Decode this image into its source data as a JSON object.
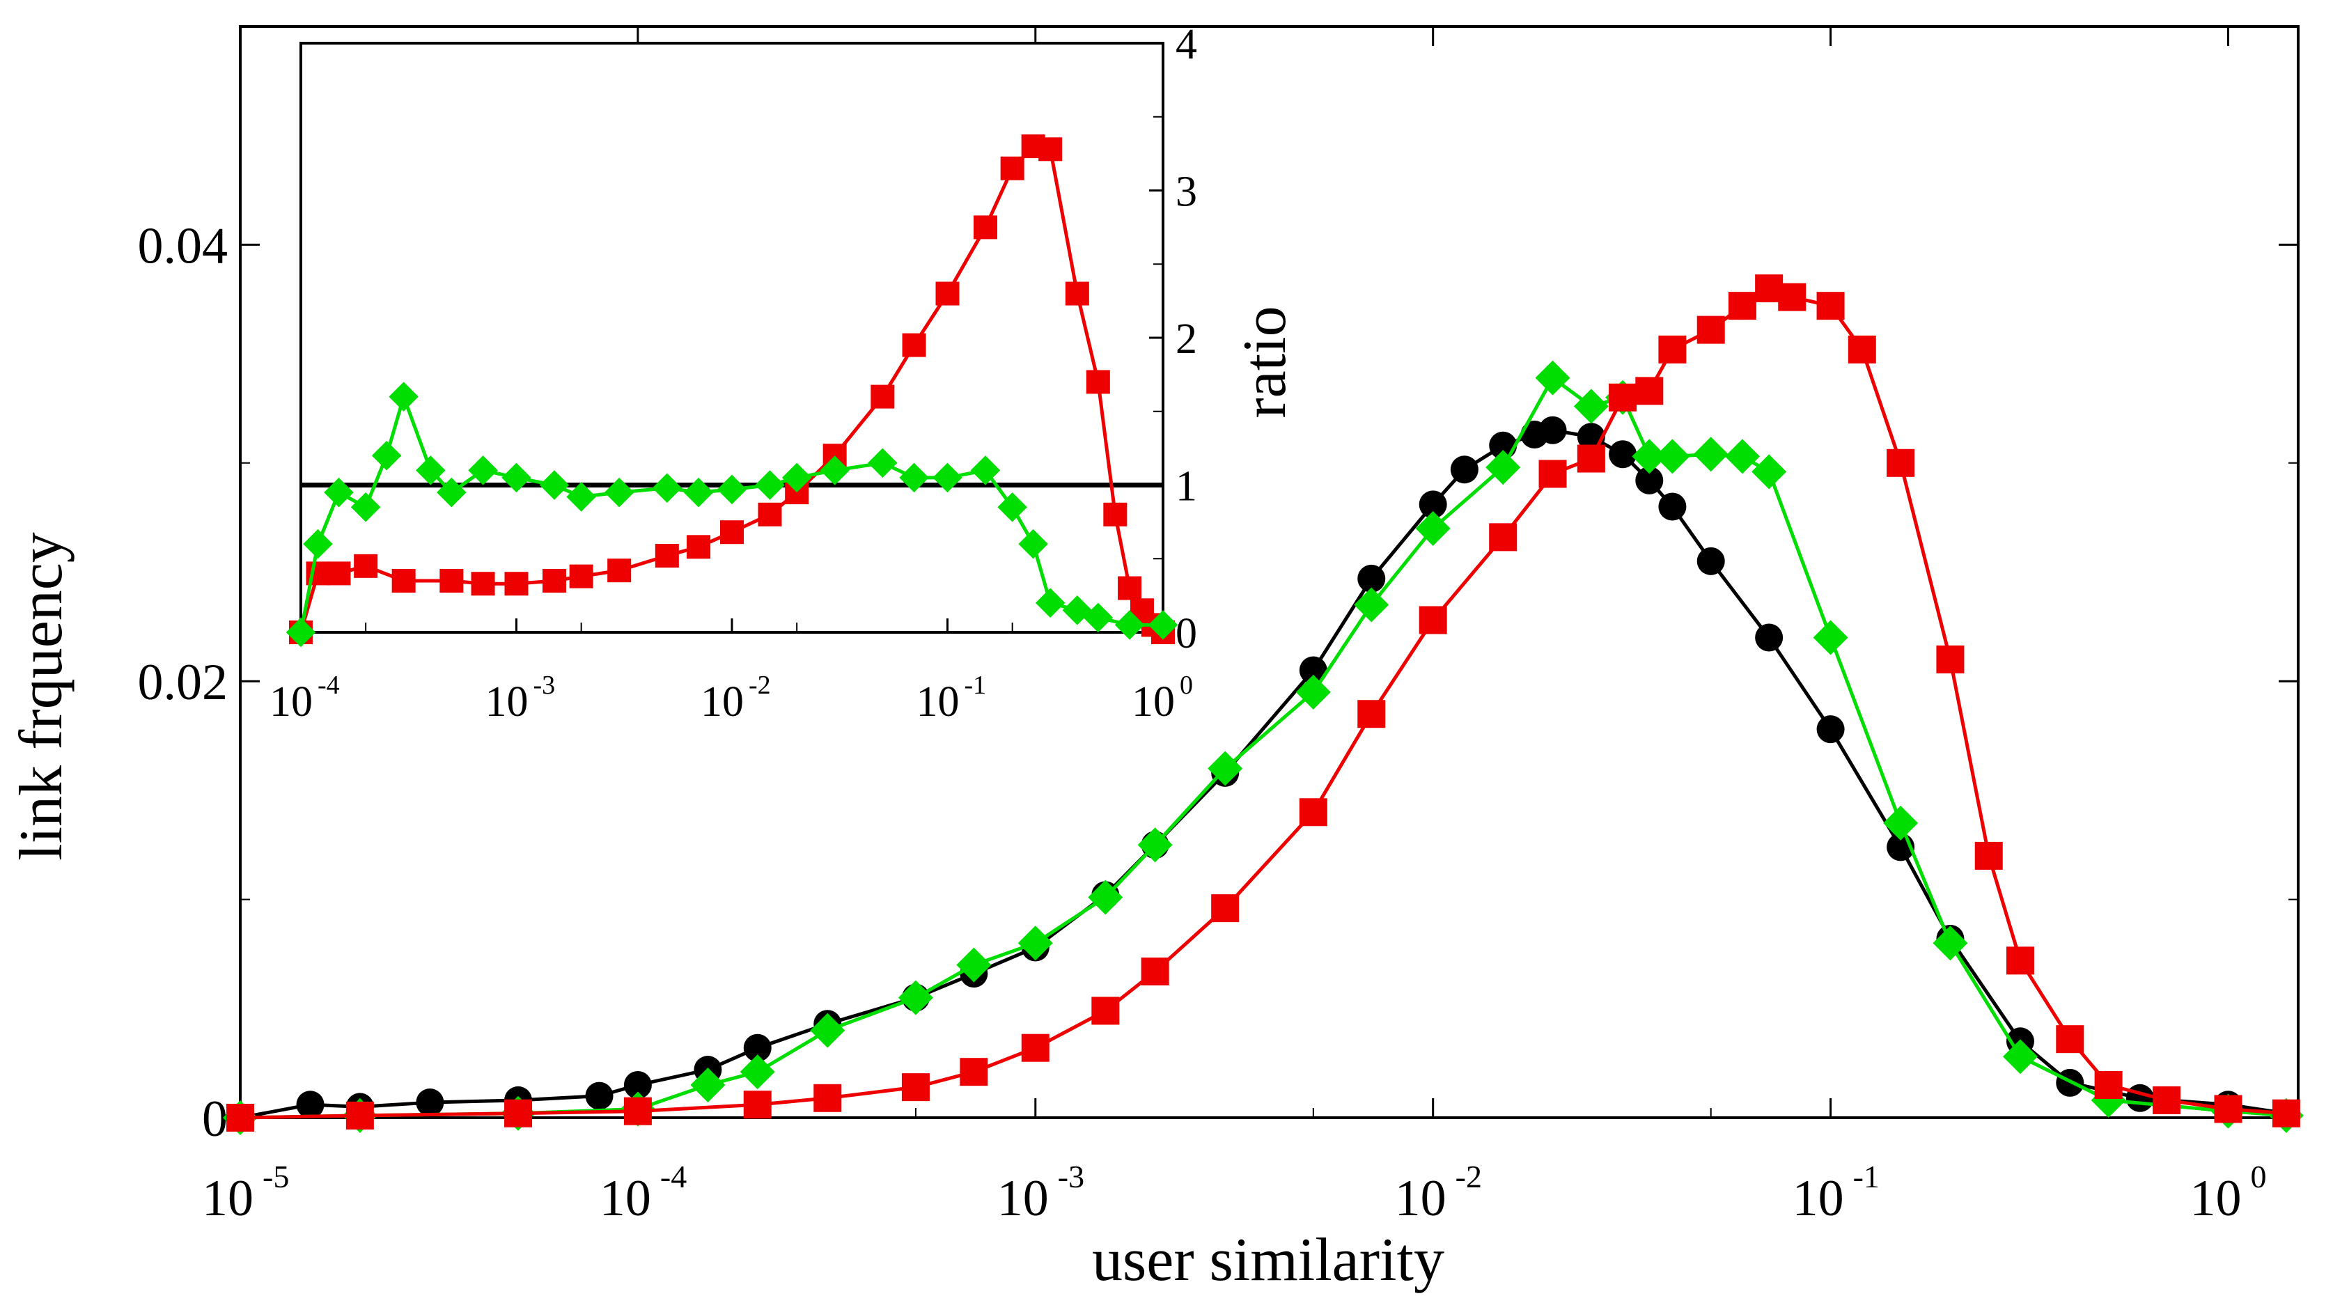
{
  "chart_data": [
    {
      "id": "main",
      "type": "line",
      "xscale": "log",
      "xlabel": "user similarity",
      "ylabel": "link frquency",
      "xlim": [
        1e-05,
        1.5
      ],
      "ylim": [
        0,
        0.05
      ],
      "xticks": [
        {
          "base": "10",
          "exp": "-5",
          "value": 1e-05
        },
        {
          "base": "10",
          "exp": "-4",
          "value": 0.0001
        },
        {
          "base": "10",
          "exp": "-3",
          "value": 0.001
        },
        {
          "base": "10",
          "exp": "-2",
          "value": 0.01
        },
        {
          "base": "10",
          "exp": "-1",
          "value": 0.1
        },
        {
          "base": "10",
          "exp": "0",
          "value": 1
        }
      ],
      "yticks": [
        {
          "label": "0",
          "value": 0
        },
        {
          "label": "0.02",
          "value": 0.02
        },
        {
          "label": "0.04",
          "value": 0.04
        }
      ],
      "series": [
        {
          "name": "black-circles",
          "color": "#000000",
          "marker": "circle",
          "x": [
            1e-05,
            1.5e-05,
            2e-05,
            3e-05,
            5e-05,
            8e-05,
            0.0001,
            0.00015,
            0.0002,
            0.0003,
            0.0005,
            0.0007,
            0.001,
            0.0015,
            0.002,
            0.003,
            0.005,
            0.007,
            0.01,
            0.012,
            0.015,
            0.018,
            0.02,
            0.025,
            0.03,
            0.035,
            0.04,
            0.05,
            0.07,
            0.1,
            0.15,
            0.2,
            0.3,
            0.4,
            0.6,
            1.0,
            1.4
          ],
          "y": [
            0.0,
            0.0006,
            0.0005,
            0.0007,
            0.0008,
            0.001,
            0.0015,
            0.0022,
            0.0032,
            0.0043,
            0.0055,
            0.0066,
            0.0078,
            0.0102,
            0.0125,
            0.0158,
            0.0205,
            0.0247,
            0.0281,
            0.0297,
            0.0308,
            0.0313,
            0.0315,
            0.0312,
            0.0304,
            0.0292,
            0.028,
            0.0255,
            0.022,
            0.0178,
            0.0124,
            0.0082,
            0.0035,
            0.0016,
            0.0009,
            0.0006,
            0.0002
          ]
        },
        {
          "name": "green-diamonds",
          "color": "#00dd00",
          "marker": "diamond",
          "x": [
            1e-05,
            2e-05,
            5e-05,
            0.0001,
            0.00015,
            0.0002,
            0.0003,
            0.0005,
            0.0007,
            0.001,
            0.0015,
            0.002,
            0.003,
            0.005,
            0.007,
            0.01,
            0.015,
            0.02,
            0.025,
            0.03,
            0.035,
            0.04,
            0.05,
            0.06,
            0.07,
            0.1,
            0.15,
            0.2,
            0.3,
            0.5,
            1.0,
            1.4
          ],
          "y": [
            0.0,
            0.0001,
            0.0002,
            0.0004,
            0.0015,
            0.0021,
            0.004,
            0.0055,
            0.007,
            0.008,
            0.0101,
            0.0125,
            0.016,
            0.0195,
            0.0235,
            0.027,
            0.0298,
            0.0339,
            0.0326,
            0.033,
            0.0303,
            0.0303,
            0.0304,
            0.0303,
            0.0296,
            0.022,
            0.0135,
            0.008,
            0.0028,
            0.0008,
            0.0003,
            0.0001
          ]
        },
        {
          "name": "red-squares",
          "color": "#ee0000",
          "marker": "square",
          "x": [
            1e-05,
            2e-05,
            5e-05,
            0.0001,
            0.0002,
            0.0003,
            0.0005,
            0.0007,
            0.001,
            0.0015,
            0.002,
            0.003,
            0.005,
            0.007,
            0.01,
            0.015,
            0.02,
            0.025,
            0.03,
            0.035,
            0.04,
            0.05,
            0.06,
            0.07,
            0.08,
            0.1,
            0.12,
            0.15,
            0.2,
            0.25,
            0.3,
            0.4,
            0.5,
            0.7,
            1.0,
            1.4
          ],
          "y": [
            0.0,
            0.0001,
            0.0002,
            0.0003,
            0.0006,
            0.0009,
            0.0014,
            0.0021,
            0.0032,
            0.0049,
            0.0067,
            0.0096,
            0.014,
            0.0185,
            0.0228,
            0.0266,
            0.0295,
            0.0302,
            0.033,
            0.0333,
            0.0352,
            0.0361,
            0.0372,
            0.038,
            0.0376,
            0.0372,
            0.0352,
            0.03,
            0.021,
            0.012,
            0.0072,
            0.0036,
            0.0015,
            0.0008,
            0.0004,
            0.0002
          ]
        }
      ]
    },
    {
      "id": "inset",
      "type": "line",
      "xscale": "log",
      "ylabel": "ratio",
      "xlim": [
        0.0001,
        1
      ],
      "ylim": [
        0,
        4
      ],
      "xticks": [
        {
          "base": "10",
          "exp": "-4",
          "value": 0.0001
        },
        {
          "base": "10",
          "exp": "-3",
          "value": 0.001
        },
        {
          "base": "10",
          "exp": "-2",
          "value": 0.01
        },
        {
          "base": "10",
          "exp": "-1",
          "value": 0.1
        },
        {
          "base": "10",
          "exp": "0",
          "value": 1
        }
      ],
      "yticks": [
        {
          "label": "0",
          "value": 0
        },
        {
          "label": "1",
          "value": 1
        },
        {
          "label": "2",
          "value": 2
        },
        {
          "label": "3",
          "value": 3
        },
        {
          "label": "4",
          "value": 4
        }
      ],
      "reference_line": {
        "y": 1,
        "color": "#000000"
      },
      "series": [
        {
          "name": "red-squares",
          "color": "#ee0000",
          "marker": "square",
          "x": [
            0.0001,
            0.00012,
            0.00015,
            0.0002,
            0.0003,
            0.0005,
            0.0007,
            0.001,
            0.0015,
            0.002,
            0.003,
            0.005,
            0.007,
            0.01,
            0.015,
            0.02,
            0.03,
            0.05,
            0.07,
            0.1,
            0.15,
            0.2,
            0.25,
            0.3,
            0.4,
            0.5,
            0.6,
            0.7,
            0.8,
            0.9,
            1.0
          ],
          "y": [
            0.0,
            0.4,
            0.4,
            0.45,
            0.35,
            0.35,
            0.33,
            0.33,
            0.35,
            0.38,
            0.42,
            0.52,
            0.58,
            0.68,
            0.8,
            0.95,
            1.2,
            1.6,
            1.95,
            2.3,
            2.75,
            3.15,
            3.3,
            3.28,
            2.3,
            1.7,
            0.8,
            0.3,
            0.15,
            0.05,
            0.0
          ]
        },
        {
          "name": "green-diamonds",
          "color": "#00dd00",
          "marker": "diamond",
          "x": [
            0.0001,
            0.00012,
            0.00015,
            0.0002,
            0.00025,
            0.0003,
            0.0004,
            0.0005,
            0.0007,
            0.001,
            0.0015,
            0.002,
            0.003,
            0.005,
            0.007,
            0.01,
            0.015,
            0.02,
            0.03,
            0.05,
            0.07,
            0.1,
            0.15,
            0.2,
            0.25,
            0.3,
            0.4,
            0.5,
            0.7,
            1.0
          ],
          "y": [
            0.0,
            0.6,
            0.95,
            0.85,
            1.2,
            1.6,
            1.1,
            0.95,
            1.1,
            1.05,
            1.0,
            0.92,
            0.95,
            0.98,
            0.95,
            0.97,
            1.0,
            1.05,
            1.1,
            1.15,
            1.05,
            1.05,
            1.1,
            0.85,
            0.6,
            0.2,
            0.15,
            0.1,
            0.05,
            0.05
          ]
        }
      ]
    }
  ]
}
